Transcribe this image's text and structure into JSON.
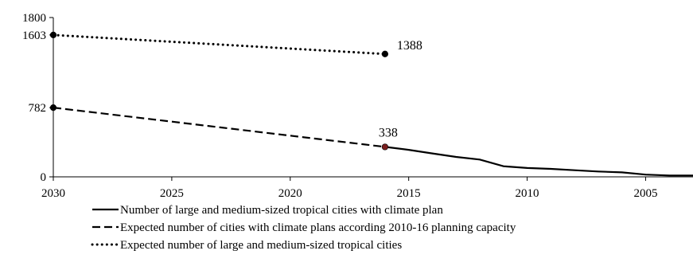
{
  "chart_data": {
    "type": "line",
    "title": "",
    "xlabel": "",
    "ylabel": "",
    "x_reversed": true,
    "xlim": [
      2030,
      2003
    ],
    "ylim": [
      0,
      1800
    ],
    "xticks": [
      2030,
      2025,
      2020,
      2015,
      2010,
      2005
    ],
    "xtick_labels": [
      "2030",
      "2025",
      "2020",
      "2015",
      "2010",
      "2005"
    ],
    "yticks": [
      0,
      782,
      1603,
      1800
    ],
    "ytick_labels": [
      "0",
      "782",
      "1603",
      "1800"
    ],
    "grid": false,
    "legend_position": "bottom",
    "series": [
      {
        "name": "Number of large and medium-sized tropical cities with climate plan",
        "style": "solid",
        "color": "#000000",
        "x": [
          2016,
          2015,
          2014,
          2013,
          2012,
          2011,
          2010,
          2009,
          2008,
          2007,
          2006,
          2005,
          2004,
          2003
        ],
        "y": [
          338,
          305,
          265,
          225,
          195,
          120,
          100,
          90,
          75,
          60,
          50,
          25,
          15,
          15
        ]
      },
      {
        "name": "Expected number of cities with climate plans according 2010-16 planning capacity",
        "style": "dashed",
        "color": "#000000",
        "x": [
          2030,
          2016
        ],
        "y": [
          782,
          338
        ]
      },
      {
        "name": "Expected number of large and medium-sized tropical cities",
        "style": "dotted",
        "color": "#000000",
        "x": [
          2030,
          2016
        ],
        "y": [
          1603,
          1388
        ]
      }
    ],
    "markers": [
      {
        "x": 2030,
        "y": 1603,
        "color": "#000000"
      },
      {
        "x": 2016,
        "y": 1388,
        "color": "#000000"
      },
      {
        "x": 2030,
        "y": 782,
        "color": "#000000"
      },
      {
        "x": 2016,
        "y": 338,
        "color": "#7a1f1f"
      }
    ],
    "annotations": [
      {
        "text": "1388",
        "x": 2016,
        "y": 1388
      },
      {
        "text": "338",
        "x": 2016,
        "y": 338
      }
    ]
  }
}
